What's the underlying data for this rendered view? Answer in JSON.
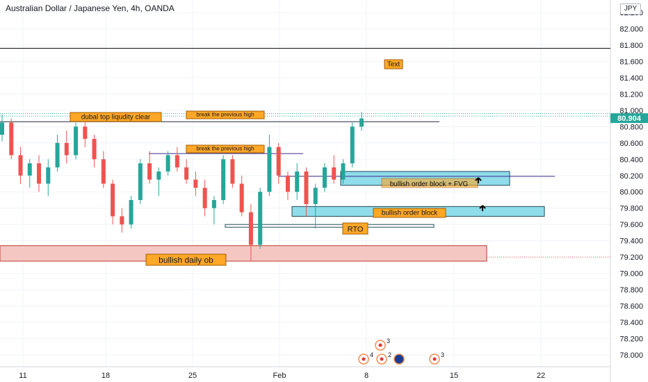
{
  "header": {
    "title": "Australian Dollar / Japanese Yen, 4h, OANDA",
    "currency_badge": "JPY"
  },
  "chart_data": {
    "type": "candlestick",
    "symbol": "Australian Dollar / Japanese Yen",
    "timeframe": "4h",
    "source": "OANDA",
    "ylim": [
      77.8,
      82.2
    ],
    "y_ticks": [
      "82.200",
      "82.000",
      "81.800",
      "81.600",
      "81.400",
      "81.200",
      "81.000",
      "80.800",
      "80.600",
      "80.400",
      "80.200",
      "80.000",
      "79.800",
      "79.600",
      "79.400",
      "79.200",
      "79.000",
      "78.800",
      "78.600",
      "78.400",
      "78.200",
      "78.000"
    ],
    "x_ticks": [
      "11",
      "18",
      "25",
      "Feb",
      "8",
      "15",
      "22"
    ],
    "current_price": "80.904",
    "colors": {
      "up": "#26a69a",
      "down": "#ef5350",
      "zone_fill": "#8fdcea",
      "zone_border": "#1f4a57",
      "daily_ob_fill": "#f4c7c3",
      "daily_ob_border": "#c0392b",
      "label_fill": "#ffa726",
      "price_label": "#26a69a"
    },
    "series": [
      {
        "ohlc_sampled": [
          [
            80.7,
            80.95,
            80.62,
            80.85
          ],
          [
            80.85,
            80.9,
            80.4,
            80.45
          ],
          [
            80.45,
            80.55,
            80.1,
            80.2
          ],
          [
            80.2,
            80.4,
            80.05,
            80.35
          ],
          [
            80.35,
            80.45,
            80.0,
            80.1
          ],
          [
            80.1,
            80.4,
            79.95,
            80.3
          ],
          [
            80.3,
            80.7,
            80.25,
            80.6
          ],
          [
            80.6,
            80.75,
            80.35,
            80.45
          ],
          [
            80.45,
            80.85,
            80.4,
            80.8
          ],
          [
            80.8,
            80.9,
            80.55,
            80.65
          ],
          [
            80.65,
            80.7,
            80.3,
            80.4
          ],
          [
            80.4,
            80.5,
            80.05,
            80.1
          ],
          [
            80.1,
            80.15,
            79.6,
            79.7
          ],
          [
            79.7,
            79.8,
            79.5,
            79.6
          ],
          [
            79.6,
            79.95,
            79.55,
            79.9
          ],
          [
            79.9,
            80.4,
            79.85,
            80.35
          ],
          [
            80.35,
            80.5,
            80.1,
            80.15
          ],
          [
            80.15,
            80.3,
            79.95,
            80.25
          ],
          [
            80.25,
            80.5,
            80.2,
            80.45
          ],
          [
            80.45,
            80.55,
            80.25,
            80.3
          ],
          [
            80.3,
            80.4,
            80.1,
            80.15
          ],
          [
            80.15,
            80.25,
            79.95,
            80.05
          ],
          [
            80.05,
            80.15,
            79.7,
            79.8
          ],
          [
            79.8,
            79.95,
            79.6,
            79.9
          ],
          [
            79.9,
            80.45,
            79.85,
            80.4
          ],
          [
            80.4,
            80.45,
            80.05,
            80.1
          ],
          [
            80.1,
            80.2,
            79.7,
            79.75
          ],
          [
            79.75,
            79.85,
            79.15,
            79.35
          ],
          [
            79.35,
            80.05,
            79.3,
            80.0
          ],
          [
            80.0,
            80.7,
            79.95,
            80.55
          ],
          [
            80.55,
            80.6,
            80.1,
            80.2
          ],
          [
            80.2,
            80.25,
            79.9,
            80.0
          ],
          [
            80.0,
            80.35,
            79.9,
            80.25
          ],
          [
            80.25,
            80.3,
            79.7,
            79.85
          ],
          [
            79.85,
            80.1,
            79.55,
            80.05
          ],
          [
            80.05,
            80.35,
            80.0,
            80.3
          ],
          [
            80.3,
            80.45,
            80.1,
            80.15
          ],
          [
            80.15,
            80.4,
            80.1,
            80.35
          ],
          [
            80.35,
            80.85,
            80.3,
            80.8
          ],
          [
            80.8,
            80.98,
            80.75,
            80.9
          ]
        ]
      }
    ],
    "annotations": [
      "dubal top liqudity clear",
      "break the previous high",
      "break the previous high",
      "Text",
      "bullish order block + FVG",
      "bullish order block",
      "RTO",
      "bullish daily ob"
    ],
    "event_badges": [
      "3",
      "4",
      "2",
      "3"
    ]
  }
}
